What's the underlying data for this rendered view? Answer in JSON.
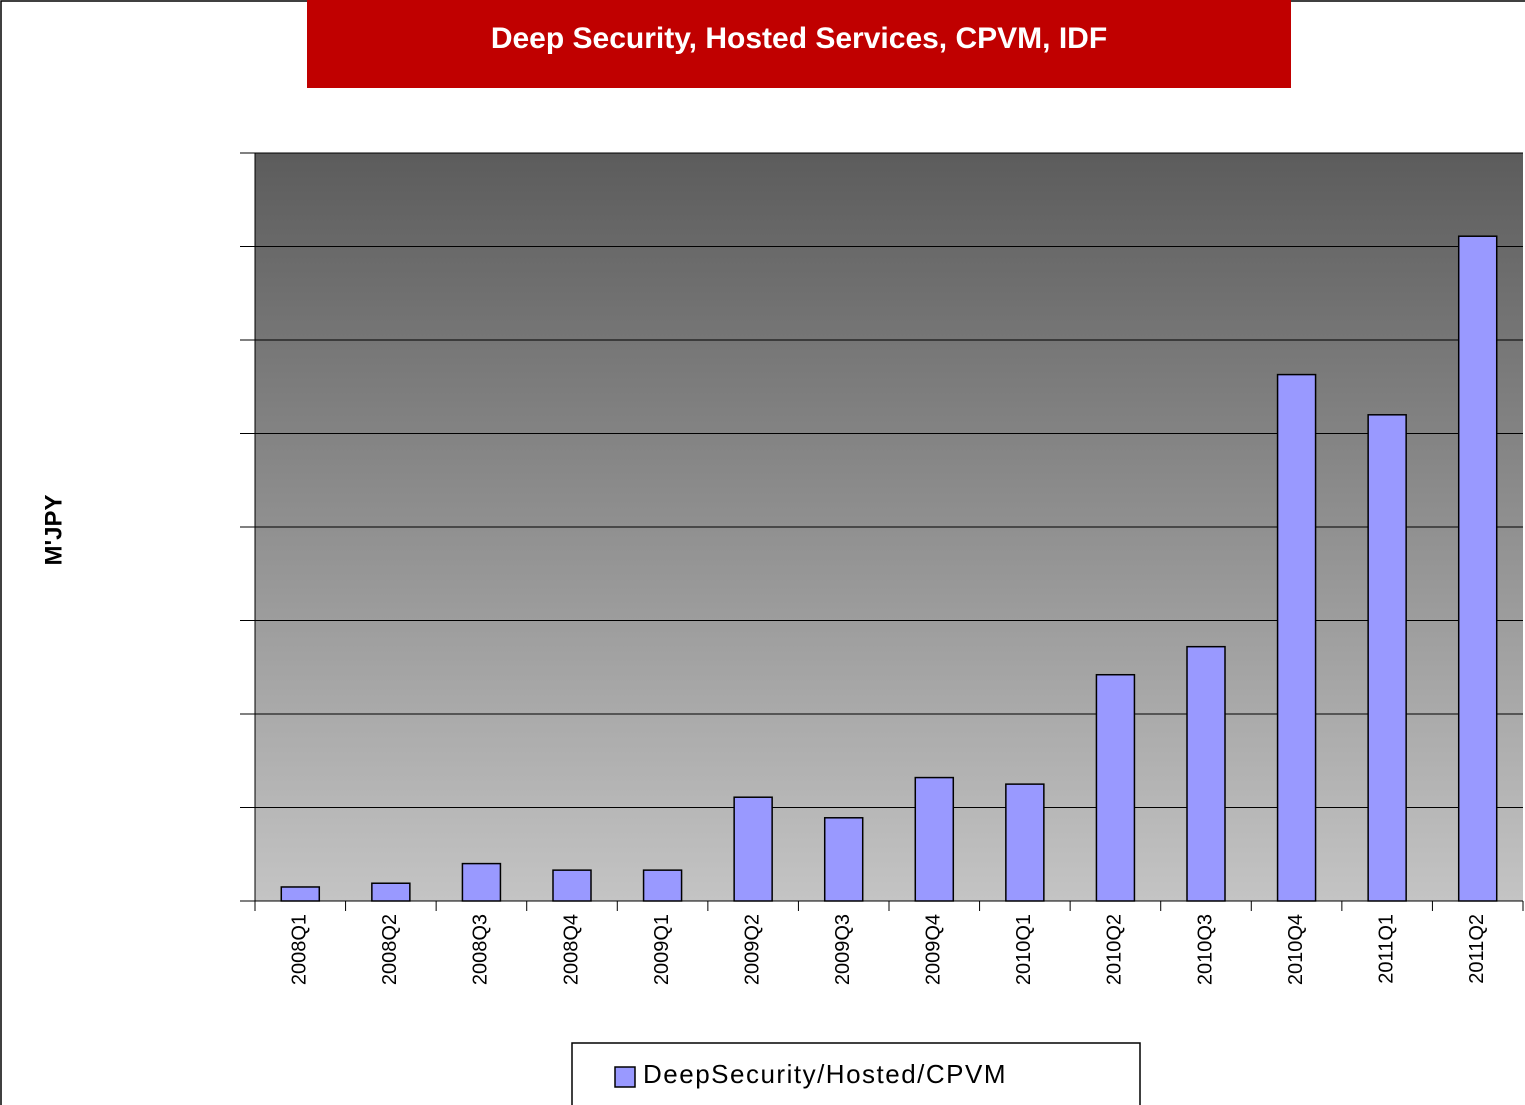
{
  "chart_data": {
    "type": "bar",
    "title": "Deep Security, Hosted Services, CPVM, IDF",
    "y_label": "M'JPY",
    "categories": [
      "2008Q1",
      "2008Q2",
      "2008Q3",
      "2008Q4",
      "2009Q1",
      "2009Q2",
      "2009Q3",
      "2009Q4",
      "2010Q1",
      "2010Q2",
      "2010Q3",
      "2010Q4",
      "2011Q1",
      "2011Q2"
    ],
    "series": [
      {
        "name": "DeepSecurity/Hosted/CPVM",
        "color": "#9999ff",
        "values": [
          0.15,
          0.19,
          0.4,
          0.33,
          0.33,
          1.11,
          0.89,
          1.32,
          1.25,
          2.42,
          2.72,
          5.63,
          5.2,
          7.11
        ]
      }
    ],
    "ylim": [
      0,
      8
    ],
    "yticks": [
      0,
      1,
      2,
      3,
      4,
      5,
      6,
      7,
      8
    ],
    "grid": true,
    "legend": "bottom"
  }
}
